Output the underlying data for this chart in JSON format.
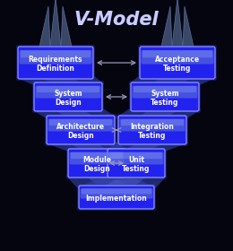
{
  "title": "V-Model",
  "background_color": "#050510",
  "title_color": "#e0e0ff",
  "box_fill_dark": "#1010cc",
  "box_fill_mid": "#2222ee",
  "box_fill_light": "#4444ff",
  "box_top_highlight": "#5555cc",
  "box_edge": "#8888ff",
  "ribbon_color": "#3344aa",
  "ribbon_dark": "#223388",
  "arrow_color": "#9999bb",
  "text_color": "#ffffff",
  "crown_color": "#445577",
  "crown_edge": "#6677aa",
  "left_labels": [
    "Requirements\nDefinition",
    "System\nDesign",
    "Architecture\nDesign",
    "Module\nDesign"
  ],
  "right_labels": [
    "Acceptance\nTesting",
    "System\nTesting",
    "Integration\nTesting",
    "Unit\nTesting"
  ],
  "bottom_label": "Implementation",
  "figsize": [
    2.6,
    2.8
  ],
  "dpi": 100
}
